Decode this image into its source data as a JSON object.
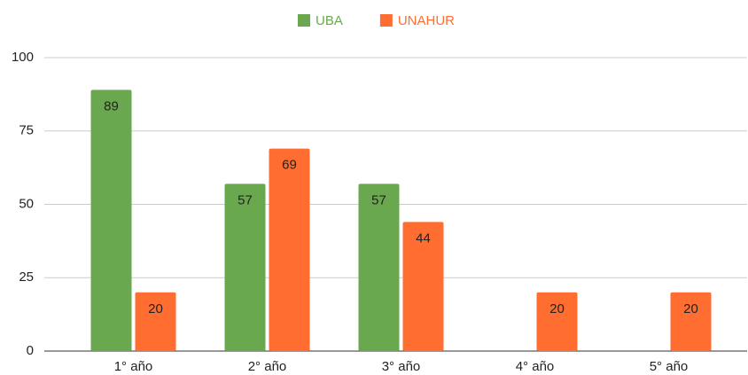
{
  "chart_data": {
    "type": "bar",
    "categories": [
      "1° año",
      "2° año",
      "3° año",
      "4° año",
      "5° año"
    ],
    "series": [
      {
        "name": "UBA",
        "color": "#6aa84f",
        "values": [
          89,
          57,
          57,
          null,
          null
        ]
      },
      {
        "name": "UNAHUR",
        "color": "#ff6d31",
        "values": [
          20,
          69,
          44,
          20,
          20
        ]
      }
    ],
    "ylim": [
      0,
      100
    ],
    "yticks": [
      0,
      25,
      50,
      75,
      100
    ],
    "grid": true,
    "legend": "top"
  }
}
